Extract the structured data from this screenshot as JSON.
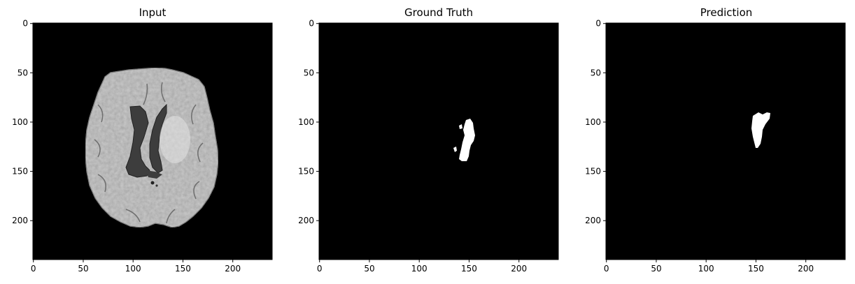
{
  "figure": {
    "panels": [
      {
        "id": "input",
        "title": "Input",
        "content": "brain-mri-slice",
        "x_ticks": [
          "0",
          "50",
          "100",
          "150",
          "200"
        ],
        "y_ticks": [
          "0",
          "50",
          "100",
          "150",
          "200"
        ]
      },
      {
        "id": "ground-truth",
        "title": "Ground Truth",
        "content": "segmentation-mask",
        "x_ticks": [
          "0",
          "50",
          "100",
          "150",
          "200"
        ],
        "y_ticks": [
          "0",
          "50",
          "100",
          "150",
          "200"
        ]
      },
      {
        "id": "prediction",
        "title": "Prediction",
        "content": "segmentation-mask",
        "x_ticks": [
          "0",
          "50",
          "100",
          "150",
          "200"
        ],
        "y_ticks": [
          "0",
          "50",
          "100",
          "150",
          "200"
        ]
      }
    ],
    "image_extent": [
      0,
      240
    ],
    "tick_values": [
      0,
      50,
      100,
      150,
      200
    ],
    "colors": {
      "background": "#000000",
      "mask": "#ffffff",
      "brain_tissue": "#c8c8c8",
      "ventricle": "#404040"
    }
  }
}
